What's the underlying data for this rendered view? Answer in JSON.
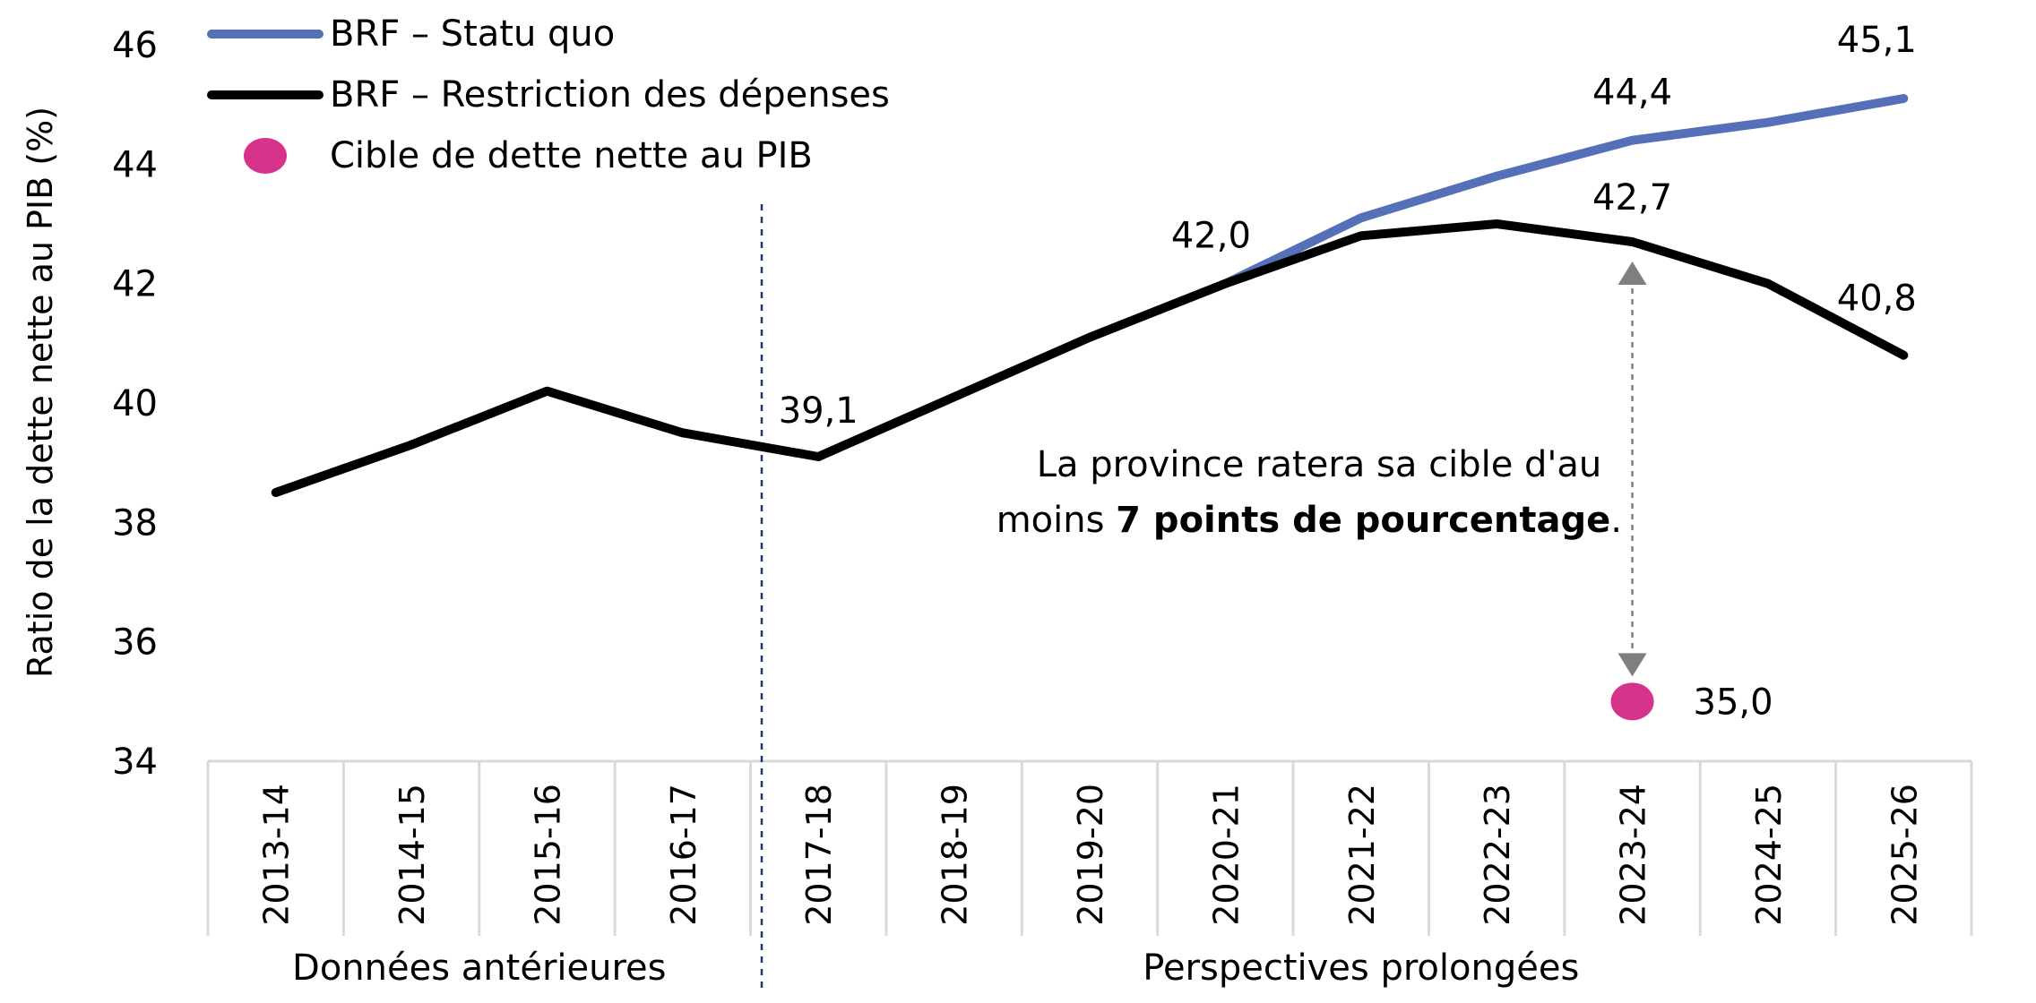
{
  "chart_data": {
    "type": "line",
    "ylabel": "Ratio de la dette nette au PIB (%)",
    "ylim": [
      34,
      46
    ],
    "yticks": [
      34,
      36,
      38,
      40,
      42,
      44,
      46
    ],
    "categories": [
      "2013-14",
      "2014-15",
      "2015-16",
      "2016-17",
      "2017-18",
      "2018-19",
      "2019-20",
      "2020-21",
      "2021-22",
      "2022-23",
      "2023-24",
      "2024-25",
      "2025-26"
    ],
    "series": [
      {
        "name": "BRF – Statu quo",
        "color": "#5470b8",
        "values": [
          null,
          null,
          null,
          null,
          null,
          null,
          null,
          42.0,
          43.1,
          43.8,
          44.4,
          44.7,
          45.1
        ]
      },
      {
        "name": "BRF – Restriction des dépenses",
        "color": "#000000",
        "values": [
          38.5,
          39.3,
          40.2,
          39.5,
          39.1,
          40.1,
          41.1,
          42.0,
          42.8,
          43.0,
          42.7,
          42.0,
          40.8
        ]
      },
      {
        "name": "Cible de dette nette au PIB",
        "color": "#d6338a",
        "type": "point",
        "points": [
          {
            "category": "2023-24",
            "value": 35.0
          }
        ]
      }
    ],
    "data_labels": [
      {
        "category": "2017-18",
        "value": 39.1,
        "text": "39,1"
      },
      {
        "category": "2020-21",
        "value": 42.0,
        "text": "42,0"
      },
      {
        "category": "2023-24",
        "value": 44.4,
        "text": "44,4"
      },
      {
        "category": "2023-24",
        "value": 42.7,
        "text": "42,7"
      },
      {
        "category": "2025-26",
        "value": 45.1,
        "text": "45,1"
      },
      {
        "category": "2025-26",
        "value": 40.8,
        "text": "40,8"
      },
      {
        "category": "2023-24",
        "value": 35.0,
        "text": "35,0"
      }
    ],
    "groups": [
      {
        "label": "Données antérieures",
        "from": "2013-14",
        "to": "2016-17"
      },
      {
        "label": "Perspectives prolongées",
        "from": "2017-18",
        "to": "2025-26"
      }
    ],
    "annotation": {
      "line1": "La province ratera sa cible d'au",
      "line2_prefix": "moins ",
      "line2_bold": "7 points de pourcentage",
      "line2_suffix": "."
    },
    "legend_position": "top-left"
  }
}
